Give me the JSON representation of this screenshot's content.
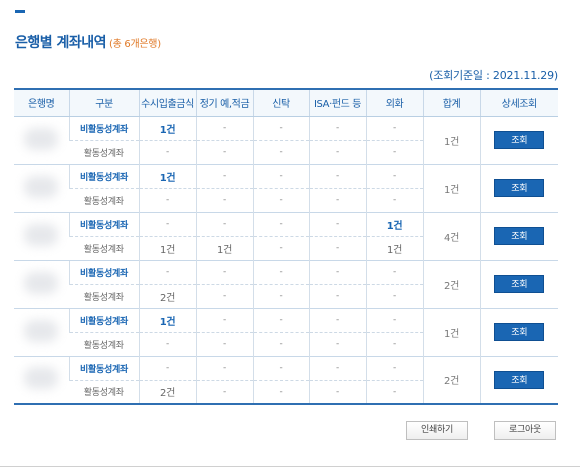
{
  "header": {
    "title": "은행별 계좌내역",
    "subtitle": "(총 6개은행)",
    "base_date": "(조회기준일 : 2021.11.29)"
  },
  "table": {
    "columns": [
      "은행명",
      "구분",
      "수시입출금식",
      "정기 예,적금",
      "신탁",
      "ISA·펀드 등",
      "외화",
      "합계",
      "상세조회"
    ],
    "banks": [
      {
        "inactive": [
          "비활동성계좌",
          "1건",
          "-",
          "-",
          "-",
          "-"
        ],
        "active": [
          "활동성계좌",
          "-",
          "-",
          "-",
          "-",
          "-"
        ],
        "total": "1건",
        "detail": "조회"
      },
      {
        "inactive": [
          "비활동성계좌",
          "1건",
          "-",
          "-",
          "-",
          "-"
        ],
        "active": [
          "활동성계좌",
          "-",
          "-",
          "-",
          "-",
          "-"
        ],
        "total": "1건",
        "detail": "조회"
      },
      {
        "inactive": [
          "비활동성계좌",
          "-",
          "-",
          "-",
          "-",
          "1건"
        ],
        "active": [
          "활동성계좌",
          "1건",
          "1건",
          "-",
          "-",
          "1건"
        ],
        "total": "4건",
        "detail": "조회"
      },
      {
        "inactive": [
          "비활동성계좌",
          "-",
          "-",
          "-",
          "-",
          "-"
        ],
        "active": [
          "활동성계좌",
          "2건",
          "-",
          "-",
          "-",
          "-"
        ],
        "total": "2건",
        "detail": "조회"
      },
      {
        "inactive": [
          "비활동성계좌",
          "1건",
          "-",
          "-",
          "-",
          "-"
        ],
        "active": [
          "활동성계좌",
          "-",
          "-",
          "-",
          "-",
          "-"
        ],
        "total": "1건",
        "detail": "조회"
      },
      {
        "inactive": [
          "비활동성계좌",
          "-",
          "-",
          "-",
          "-",
          "-"
        ],
        "active": [
          "활동성계좌",
          "2건",
          "-",
          "-",
          "-",
          "-"
        ],
        "total": "2건",
        "detail": "조회"
      }
    ]
  },
  "buttons": {
    "print": "인쇄하기",
    "logout": "로그아웃"
  },
  "colors": {
    "accent": "#1a66b3",
    "subtitle": "#e07a28",
    "header_bg": "#f3f8fc"
  }
}
